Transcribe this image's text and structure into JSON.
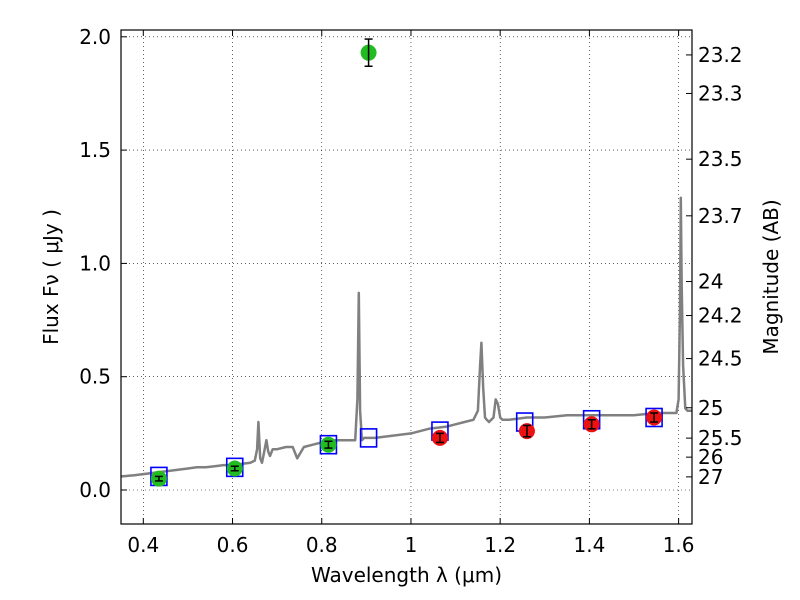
{
  "chart_data": {
    "type": "scatter",
    "title": "",
    "xlabel": "Wavelength  λ (μm)",
    "ylabel": "Flux  Fν  ( μJy )",
    "y2label": "Magnitude (AB)",
    "xlim": [
      0.35,
      1.63
    ],
    "ylim": [
      -0.15,
      2.03
    ],
    "grid": true,
    "x_ticks": [
      0.4,
      0.6,
      0.8,
      1.0,
      1.2,
      1.4,
      1.6
    ],
    "x_tick_labels": [
      "0.4",
      "0.6",
      "0.8",
      "1",
      "1.2",
      "1.4",
      "1.6"
    ],
    "y_ticks": [
      0.0,
      0.5,
      1.0,
      1.5,
      2.0
    ],
    "y_tick_labels": [
      "0.0",
      "0.5",
      "1.0",
      "1.5",
      "2.0"
    ],
    "magnitude_ticks": [
      {
        "label": "23.2",
        "flux": 1.92
      },
      {
        "label": "23.3",
        "flux": 1.75
      },
      {
        "label": "23.5",
        "flux": 1.46
      },
      {
        "label": "23.7",
        "flux": 1.21
      },
      {
        "label": "24",
        "flux": 0.92
      },
      {
        "label": "24.2",
        "flux": 0.77
      },
      {
        "label": "24.5",
        "flux": 0.58
      },
      {
        "label": "25",
        "flux": 0.363
      },
      {
        "label": "25.5",
        "flux": 0.229
      },
      {
        "label": "26",
        "flux": 0.145
      },
      {
        "label": "27",
        "flux": 0.058
      }
    ],
    "series": [
      {
        "kind": "model_spectrum",
        "color": "#808080",
        "x": [
          0.35,
          0.38,
          0.4,
          0.42,
          0.44,
          0.46,
          0.48,
          0.5,
          0.52,
          0.54,
          0.56,
          0.58,
          0.6,
          0.62,
          0.64,
          0.65,
          0.655,
          0.658,
          0.662,
          0.666,
          0.67,
          0.676,
          0.68,
          0.684,
          0.69,
          0.7,
          0.72,
          0.735,
          0.745,
          0.76,
          0.78,
          0.8,
          0.82,
          0.84,
          0.86,
          0.875,
          0.88,
          0.883,
          0.886,
          0.89,
          0.895,
          0.92,
          0.96,
          1.0,
          1.04,
          1.08,
          1.1,
          1.12,
          1.14,
          1.15,
          1.155,
          1.158,
          1.162,
          1.166,
          1.17,
          1.175,
          1.185,
          1.19,
          1.195,
          1.2,
          1.205,
          1.22,
          1.26,
          1.3,
          1.35,
          1.4,
          1.45,
          1.5,
          1.55,
          1.58,
          1.595,
          1.6,
          1.603,
          1.605,
          1.607,
          1.61,
          1.615,
          1.62,
          1.63
        ],
        "y": [
          0.06,
          0.065,
          0.07,
          0.075,
          0.08,
          0.085,
          0.09,
          0.095,
          0.1,
          0.1,
          0.105,
          0.11,
          0.11,
          0.115,
          0.12,
          0.13,
          0.18,
          0.3,
          0.14,
          0.12,
          0.16,
          0.22,
          0.17,
          0.15,
          0.18,
          0.18,
          0.19,
          0.19,
          0.14,
          0.19,
          0.2,
          0.21,
          0.22,
          0.22,
          0.22,
          0.22,
          0.4,
          0.87,
          0.35,
          0.22,
          0.23,
          0.23,
          0.24,
          0.25,
          0.27,
          0.28,
          0.29,
          0.3,
          0.31,
          0.35,
          0.55,
          0.65,
          0.45,
          0.32,
          0.31,
          0.3,
          0.32,
          0.4,
          0.38,
          0.32,
          0.31,
          0.31,
          0.32,
          0.32,
          0.33,
          0.33,
          0.33,
          0.33,
          0.34,
          0.34,
          0.34,
          0.4,
          0.8,
          1.29,
          0.9,
          0.55,
          0.36,
          0.35,
          0.35
        ]
      },
      {
        "kind": "model_photometry",
        "color": "#0000ff",
        "marker": "open-square",
        "x": [
          0.435,
          0.605,
          0.815,
          0.905,
          1.065,
          1.255,
          1.405,
          1.545
        ],
        "y": [
          0.06,
          0.1,
          0.2,
          0.23,
          0.26,
          0.3,
          0.31,
          0.32
        ]
      },
      {
        "kind": "observed_optical",
        "color": "#22bb22",
        "marker": "filled-circle",
        "x": [
          0.435,
          0.605,
          0.815,
          0.905
        ],
        "y": [
          0.05,
          0.095,
          0.2,
          1.93
        ],
        "yerr": [
          0.01,
          0.01,
          0.015,
          0.06
        ]
      },
      {
        "kind": "observed_nir",
        "color": "#ee1111",
        "marker": "filled-circle",
        "x": [
          1.065,
          1.26,
          1.405,
          1.545
        ],
        "y": [
          0.23,
          0.26,
          0.29,
          0.32
        ],
        "yerr": [
          0.02,
          0.025,
          0.02,
          0.02
        ]
      }
    ]
  }
}
